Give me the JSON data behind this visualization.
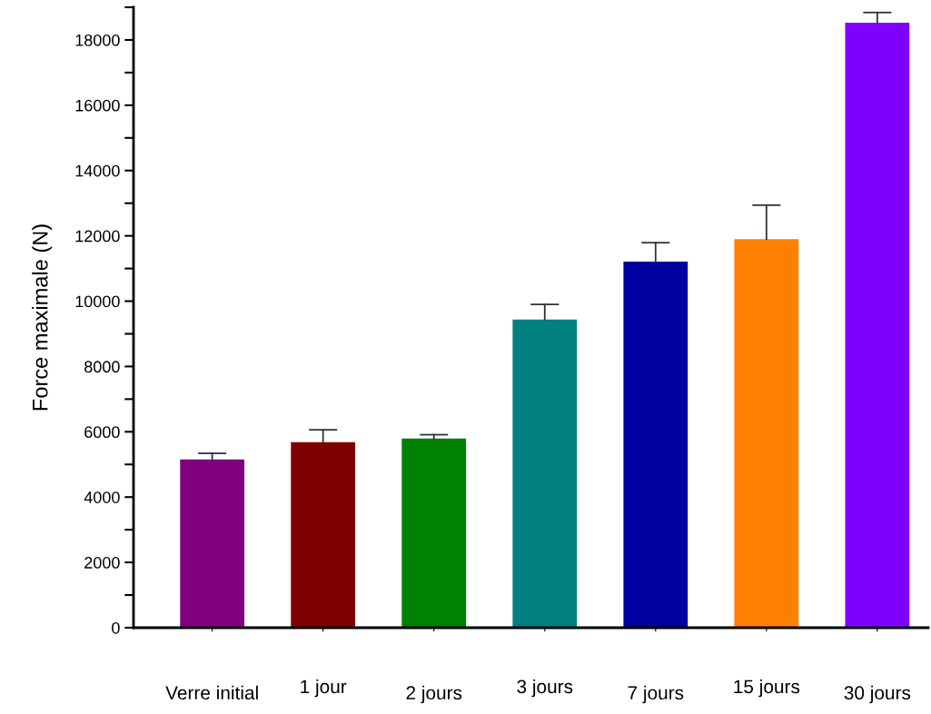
{
  "chart_data": {
    "type": "bar",
    "ylabel": "Force maximale (N)",
    "categories": [
      "Verre initial",
      "1 jour",
      "2 jours",
      "3 jours",
      "7 jours",
      "15 jours",
      "30 jours"
    ],
    "values": [
      5150,
      5680,
      5790,
      9440,
      11210,
      11900,
      18530
    ],
    "colors": [
      "#800080",
      "#800000",
      "#008000",
      "#008080",
      "#0000a0",
      "#ff8000",
      "#8000ff"
    ],
    "errors": [
      [
        5150,
        5340
      ],
      [
        5680,
        6060
      ],
      [
        5790,
        5910
      ],
      [
        9440,
        9900
      ],
      [
        11210,
        11790
      ],
      [
        11900,
        12940
      ],
      [
        18530,
        18840
      ]
    ],
    "ylim": [
      0,
      19000
    ],
    "yticks": [
      0,
      {
        "value": 1000,
        "label": null
      },
      2000,
      {
        "value": 3000,
        "label": null
      },
      4000,
      {
        "value": 5000,
        "label": null
      },
      6000,
      {
        "value": 7000,
        "label": null
      },
      8000,
      {
        "value": 9000,
        "label": null
      },
      10000,
      {
        "value": 11000,
        "label": null
      },
      12000,
      {
        "value": 13000,
        "label": null
      },
      14000,
      {
        "value": 15000,
        "label": null
      },
      16000,
      {
        "value": 17000,
        "label": null
      },
      18000,
      {
        "value": 19000,
        "label": null
      }
    ],
    "grid": false,
    "legend": false
  }
}
